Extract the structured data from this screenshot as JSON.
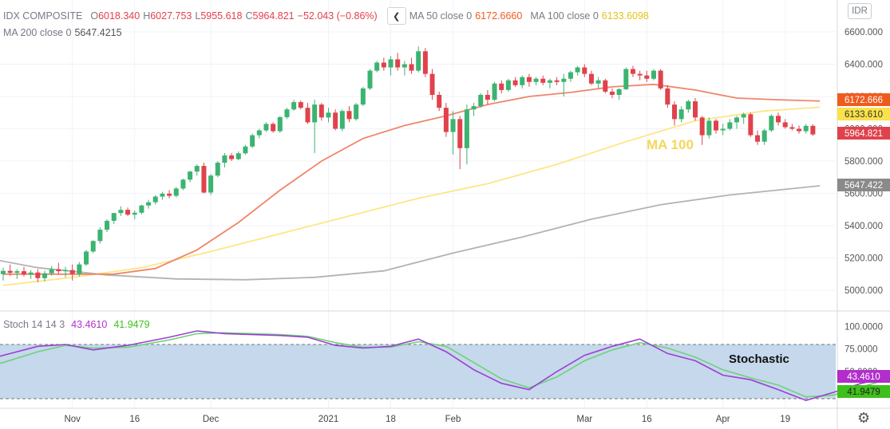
{
  "legend": {
    "symbol": "IDX COMPOSITE",
    "open_label": "O",
    "open": "6018.340",
    "high_label": "H",
    "high": "6027.753",
    "low_label": "L",
    "low": "5955.618",
    "close_label": "C",
    "close": "5964.821",
    "change": "−52.043 (−0.86%)",
    "ma50_label": "MA 50 close 0",
    "ma50_value": "6172.6660",
    "ma100_label": "MA 100 close 0",
    "ma100_value": "6133.6098",
    "ma200_label": "MA 200 close 0",
    "ma200_value": "5647.4215",
    "collapse_icon": "chevron-left-icon"
  },
  "stoch_legend": {
    "label": "Stoch 14 14 3",
    "k_value": "43.4610",
    "d_value": "41.9479"
  },
  "currency_button": "IDR",
  "settings_icon": "gear-icon",
  "annotations": {
    "ma100": "MA 100",
    "stochastic": "Stochastic"
  },
  "colors": {
    "up": "#3cb371",
    "down": "#e0424c",
    "ma50": "#f0866a",
    "ma100": "#fbe787",
    "ma200": "#b3b3b3",
    "stoch_k": "#9b3fd0",
    "stoch_d": "#6fd27a",
    "band": "#c5d8ec",
    "grid": "#f0f3fa"
  },
  "chart_data": [
    {
      "type": "candlestick",
      "title": "",
      "price_axis": {
        "ylim": [
          4920,
          6640
        ],
        "ticks": [
          "6600.000",
          "6400.000",
          "6200.000",
          "6000.000",
          "5800.000",
          "5600.000",
          "5400.000",
          "5200.000",
          "5000.000"
        ],
        "price_labels": [
          {
            "text": "6172.666",
            "color": "#ef5b1f",
            "value": 6172.666
          },
          {
            "text": "6133.610",
            "color": "#fbe14a",
            "value": 6133.61
          },
          {
            "text": "5964.821",
            "color": "#e0424c",
            "value": 5964.821
          },
          {
            "text": "5647.422",
            "color": "#8a8a8a",
            "value": 5647.422
          }
        ]
      },
      "x_ticks": [
        {
          "label": "Nov",
          "index": 10
        },
        {
          "label": "16",
          "index": 19
        },
        {
          "label": "Dec",
          "index": 30
        },
        {
          "label": "2021",
          "index": 47
        },
        {
          "label": "18",
          "index": 56
        },
        {
          "label": "Feb",
          "index": 65
        },
        {
          "label": "Mar",
          "index": 84
        },
        {
          "label": "16",
          "index": 93
        },
        {
          "label": "Apr",
          "index": 104
        },
        {
          "label": "19",
          "index": 113
        }
      ],
      "ohlc": [
        [
          5100,
          5140,
          5060,
          5120
        ],
        [
          5120,
          5160,
          5090,
          5108
        ],
        [
          5108,
          5130,
          5070,
          5118
        ],
        [
          5118,
          5145,
          5085,
          5098
        ],
        [
          5098,
          5125,
          5070,
          5110
        ],
        [
          5110,
          5130,
          5050,
          5075
        ],
        [
          5075,
          5120,
          5055,
          5105
        ],
        [
          5105,
          5150,
          5090,
          5130
        ],
        [
          5130,
          5170,
          5100,
          5118
        ],
        [
          5118,
          5145,
          5080,
          5125
        ],
        [
          5125,
          5160,
          5060,
          5100
        ],
        [
          5100,
          5175,
          5085,
          5160
        ],
        [
          5160,
          5250,
          5150,
          5240
        ],
        [
          5240,
          5310,
          5230,
          5305
        ],
        [
          5305,
          5390,
          5290,
          5375
        ],
        [
          5375,
          5440,
          5360,
          5430
        ],
        [
          5430,
          5480,
          5410,
          5478
        ],
        [
          5478,
          5520,
          5460,
          5498
        ],
        [
          5498,
          5512,
          5460,
          5468
        ],
        [
          5468,
          5495,
          5440,
          5480
        ],
        [
          5480,
          5530,
          5470,
          5525
        ],
        [
          5525,
          5560,
          5505,
          5545
        ],
        [
          5545,
          5590,
          5530,
          5580
        ],
        [
          5580,
          5610,
          5560,
          5598
        ],
        [
          5598,
          5620,
          5570,
          5585
        ],
        [
          5585,
          5640,
          5575,
          5630
        ],
        [
          5630,
          5690,
          5620,
          5685
        ],
        [
          5685,
          5740,
          5670,
          5735
        ],
        [
          5735,
          5780,
          5710,
          5770
        ],
        [
          5770,
          5790,
          5600,
          5605
        ],
        [
          5605,
          5720,
          5590,
          5710
        ],
        [
          5710,
          5800,
          5700,
          5790
        ],
        [
          5790,
          5850,
          5760,
          5835
        ],
        [
          5835,
          5850,
          5800,
          5812
        ],
        [
          5812,
          5860,
          5805,
          5848
        ],
        [
          5848,
          5900,
          5840,
          5890
        ],
        [
          5890,
          5970,
          5880,
          5960
        ],
        [
          5960,
          6000,
          5940,
          5990
        ],
        [
          5990,
          6040,
          5980,
          6030
        ],
        [
          6030,
          6040,
          5975,
          5985
        ],
        [
          5985,
          6080,
          5975,
          6072
        ],
        [
          6072,
          6130,
          6060,
          6120
        ],
        [
          6120,
          6180,
          6110,
          6165
        ],
        [
          6165,
          6175,
          6120,
          6130
        ],
        [
          6130,
          6160,
          6030,
          6040
        ],
        [
          6040,
          6180,
          5850,
          6150
        ],
        [
          6150,
          6160,
          6050,
          6070
        ],
        [
          6070,
          6130,
          6040,
          6100
        ],
        [
          6100,
          6120,
          5990,
          6000
        ],
        [
          6000,
          6120,
          5985,
          6110
        ],
        [
          6110,
          6140,
          6040,
          6060
        ],
        [
          6060,
          6160,
          6050,
          6150
        ],
        [
          6150,
          6260,
          6140,
          6250
        ],
        [
          6250,
          6370,
          6240,
          6360
        ],
        [
          6360,
          6420,
          6350,
          6410
        ],
        [
          6410,
          6440,
          6360,
          6380
        ],
        [
          6380,
          6450,
          6330,
          6430
        ],
        [
          6430,
          6470,
          6360,
          6380
        ],
        [
          6380,
          6420,
          6330,
          6400
        ],
        [
          6400,
          6440,
          6340,
          6360
        ],
        [
          6360,
          6510,
          6350,
          6480
        ],
        [
          6480,
          6500,
          6320,
          6340
        ],
        [
          6340,
          6370,
          6180,
          6210
        ],
        [
          6210,
          6230,
          6110,
          6130
        ],
        [
          6130,
          6160,
          5950,
          5980
        ],
        [
          5980,
          6110,
          5840,
          6060
        ],
        [
          6060,
          6080,
          5750,
          5880
        ],
        [
          5880,
          6150,
          5780,
          6120
        ],
        [
          6120,
          6160,
          6080,
          6140
        ],
        [
          6140,
          6220,
          6130,
          6210
        ],
        [
          6210,
          6240,
          6150,
          6180
        ],
        [
          6180,
          6290,
          6170,
          6280
        ],
        [
          6280,
          6300,
          6220,
          6240
        ],
        [
          6240,
          6310,
          6230,
          6300
        ],
        [
          6300,
          6320,
          6260,
          6270
        ],
        [
          6270,
          6330,
          6250,
          6320
        ],
        [
          6320,
          6340,
          6260,
          6290
        ],
        [
          6290,
          6320,
          6270,
          6310
        ],
        [
          6310,
          6330,
          6270,
          6285
        ],
        [
          6285,
          6310,
          6250,
          6300
        ],
        [
          6300,
          6320,
          6270,
          6290
        ],
        [
          6290,
          6340,
          6200,
          6310
        ],
        [
          6310,
          6360,
          6290,
          6350
        ],
        [
          6350,
          6390,
          6330,
          6380
        ],
        [
          6380,
          6400,
          6320,
          6340
        ],
        [
          6340,
          6360,
          6270,
          6280
        ],
        [
          6280,
          6320,
          6250,
          6300
        ],
        [
          6300,
          6310,
          6220,
          6230
        ],
        [
          6230,
          6250,
          6190,
          6210
        ],
        [
          6210,
          6250,
          6180,
          6245
        ],
        [
          6245,
          6380,
          6240,
          6370
        ],
        [
          6370,
          6390,
          6320,
          6340
        ],
        [
          6340,
          6360,
          6300,
          6330
        ],
        [
          6330,
          6360,
          6290,
          6310
        ],
        [
          6310,
          6370,
          6300,
          6360
        ],
        [
          6360,
          6370,
          6240,
          6250
        ],
        [
          6250,
          6270,
          6130,
          6150
        ],
        [
          6150,
          6170,
          6020,
          6060
        ],
        [
          6060,
          6140,
          6040,
          6120
        ],
        [
          6120,
          6180,
          6100,
          6170
        ],
        [
          6170,
          6190,
          6050,
          6070
        ],
        [
          6070,
          6080,
          5900,
          5960
        ],
        [
          5960,
          6070,
          5940,
          6050
        ],
        [
          6050,
          6060,
          5970,
          5990
        ],
        [
          5990,
          6030,
          5960,
          6000
        ],
        [
          6000,
          6060,
          5990,
          6040
        ],
        [
          6040,
          6080,
          6000,
          6070
        ],
        [
          6070,
          6100,
          6030,
          6090
        ],
        [
          6090,
          6100,
          5950,
          5960
        ],
        [
          5960,
          5990,
          5900,
          5920
        ],
        [
          5920,
          6000,
          5900,
          5990
        ],
        [
          5990,
          6090,
          5980,
          6080
        ],
        [
          6080,
          6100,
          6020,
          6040
        ],
        [
          6040,
          6060,
          6000,
          6010
        ],
        [
          6010,
          6030,
          5990,
          6000
        ],
        [
          6000,
          6020,
          5970,
          5985
        ],
        [
          5985,
          6030,
          5970,
          6018
        ],
        [
          6018,
          6028,
          5956,
          5965
        ]
      ],
      "ma50": [
        [
          0,
          5100
        ],
        [
          8,
          5100
        ],
        [
          16,
          5100
        ],
        [
          22,
          5135
        ],
        [
          28,
          5250
        ],
        [
          34,
          5420
        ],
        [
          40,
          5620
        ],
        [
          46,
          5800
        ],
        [
          52,
          5940
        ],
        [
          58,
          6020
        ],
        [
          64,
          6080
        ],
        [
          70,
          6150
        ],
        [
          76,
          6200
        ],
        [
          82,
          6225
        ],
        [
          88,
          6260
        ],
        [
          94,
          6275
        ],
        [
          100,
          6240
        ],
        [
          106,
          6190
        ],
        [
          112,
          6180
        ],
        [
          118,
          6172
        ]
      ],
      "ma100": [
        [
          0,
          5030
        ],
        [
          10,
          5080
        ],
        [
          20,
          5140
        ],
        [
          30,
          5240
        ],
        [
          40,
          5350
        ],
        [
          50,
          5460
        ],
        [
          60,
          5570
        ],
        [
          70,
          5660
        ],
        [
          80,
          5780
        ],
        [
          90,
          5920
        ],
        [
          100,
          6050
        ],
        [
          110,
          6110
        ],
        [
          118,
          6134
        ]
      ],
      "ma200": [
        [
          -5,
          5220
        ],
        [
          5,
          5140
        ],
        [
          15,
          5095
        ],
        [
          25,
          5070
        ],
        [
          35,
          5065
        ],
        [
          45,
          5080
        ],
        [
          55,
          5120
        ],
        [
          65,
          5230
        ],
        [
          75,
          5330
        ],
        [
          85,
          5440
        ],
        [
          95,
          5530
        ],
        [
          105,
          5590
        ],
        [
          118,
          5647
        ]
      ]
    },
    {
      "type": "line",
      "title": "",
      "ylim": [
        0,
        100
      ],
      "ticks": [
        "100.0000",
        "75.0000",
        "50.0000",
        "25.0000"
      ],
      "band": [
        20,
        80
      ],
      "price_labels": [
        {
          "text": "43.4610",
          "color": "#b22ecb",
          "value": 43.461
        },
        {
          "text": "41.9479",
          "color": "#3ec01a",
          "value": 41.9479
        }
      ],
      "series": [
        {
          "name": "",
          "key": "k",
          "points": [
            [
              -5,
              58
            ],
            [
              0,
              68
            ],
            [
              5,
              78
            ],
            [
              9,
              80
            ],
            [
              13,
              74
            ],
            [
              18,
              79
            ],
            [
              24,
              88
            ],
            [
              28,
              95
            ],
            [
              32,
              92
            ],
            [
              40,
              90
            ],
            [
              44,
              88
            ],
            [
              48,
              79
            ],
            [
              52,
              76
            ],
            [
              56,
              78
            ],
            [
              60,
              86
            ],
            [
              64,
              72
            ],
            [
              68,
              52
            ],
            [
              72,
              37
            ],
            [
              76,
              30
            ],
            [
              80,
              50
            ],
            [
              84,
              68
            ],
            [
              88,
              78
            ],
            [
              92,
              86
            ],
            [
              96,
              70
            ],
            [
              100,
              62
            ],
            [
              104,
              46
            ],
            [
              108,
              41
            ],
            [
              112,
              30
            ],
            [
              116,
              18
            ],
            [
              120,
              27
            ],
            [
              124,
              37
            ],
            [
              128,
              43.46
            ]
          ]
        },
        {
          "name": "",
          "key": "d",
          "points": [
            [
              -5,
              52
            ],
            [
              0,
              60
            ],
            [
              5,
              72
            ],
            [
              9,
              79
            ],
            [
              13,
              76
            ],
            [
              18,
              77
            ],
            [
              24,
              85
            ],
            [
              28,
              92
            ],
            [
              32,
              93
            ],
            [
              40,
              91
            ],
            [
              44,
              89
            ],
            [
              48,
              82
            ],
            [
              52,
              77
            ],
            [
              56,
              77
            ],
            [
              60,
              83
            ],
            [
              64,
              78
            ],
            [
              68,
              60
            ],
            [
              72,
              42
            ],
            [
              76,
              32
            ],
            [
              80,
              44
            ],
            [
              84,
              62
            ],
            [
              88,
              74
            ],
            [
              92,
              82
            ],
            [
              96,
              76
            ],
            [
              100,
              66
            ],
            [
              104,
              52
            ],
            [
              108,
              43
            ],
            [
              112,
              35
            ],
            [
              116,
              22
            ],
            [
              120,
              24
            ],
            [
              124,
              33
            ],
            [
              128,
              41.95
            ]
          ]
        }
      ]
    }
  ]
}
